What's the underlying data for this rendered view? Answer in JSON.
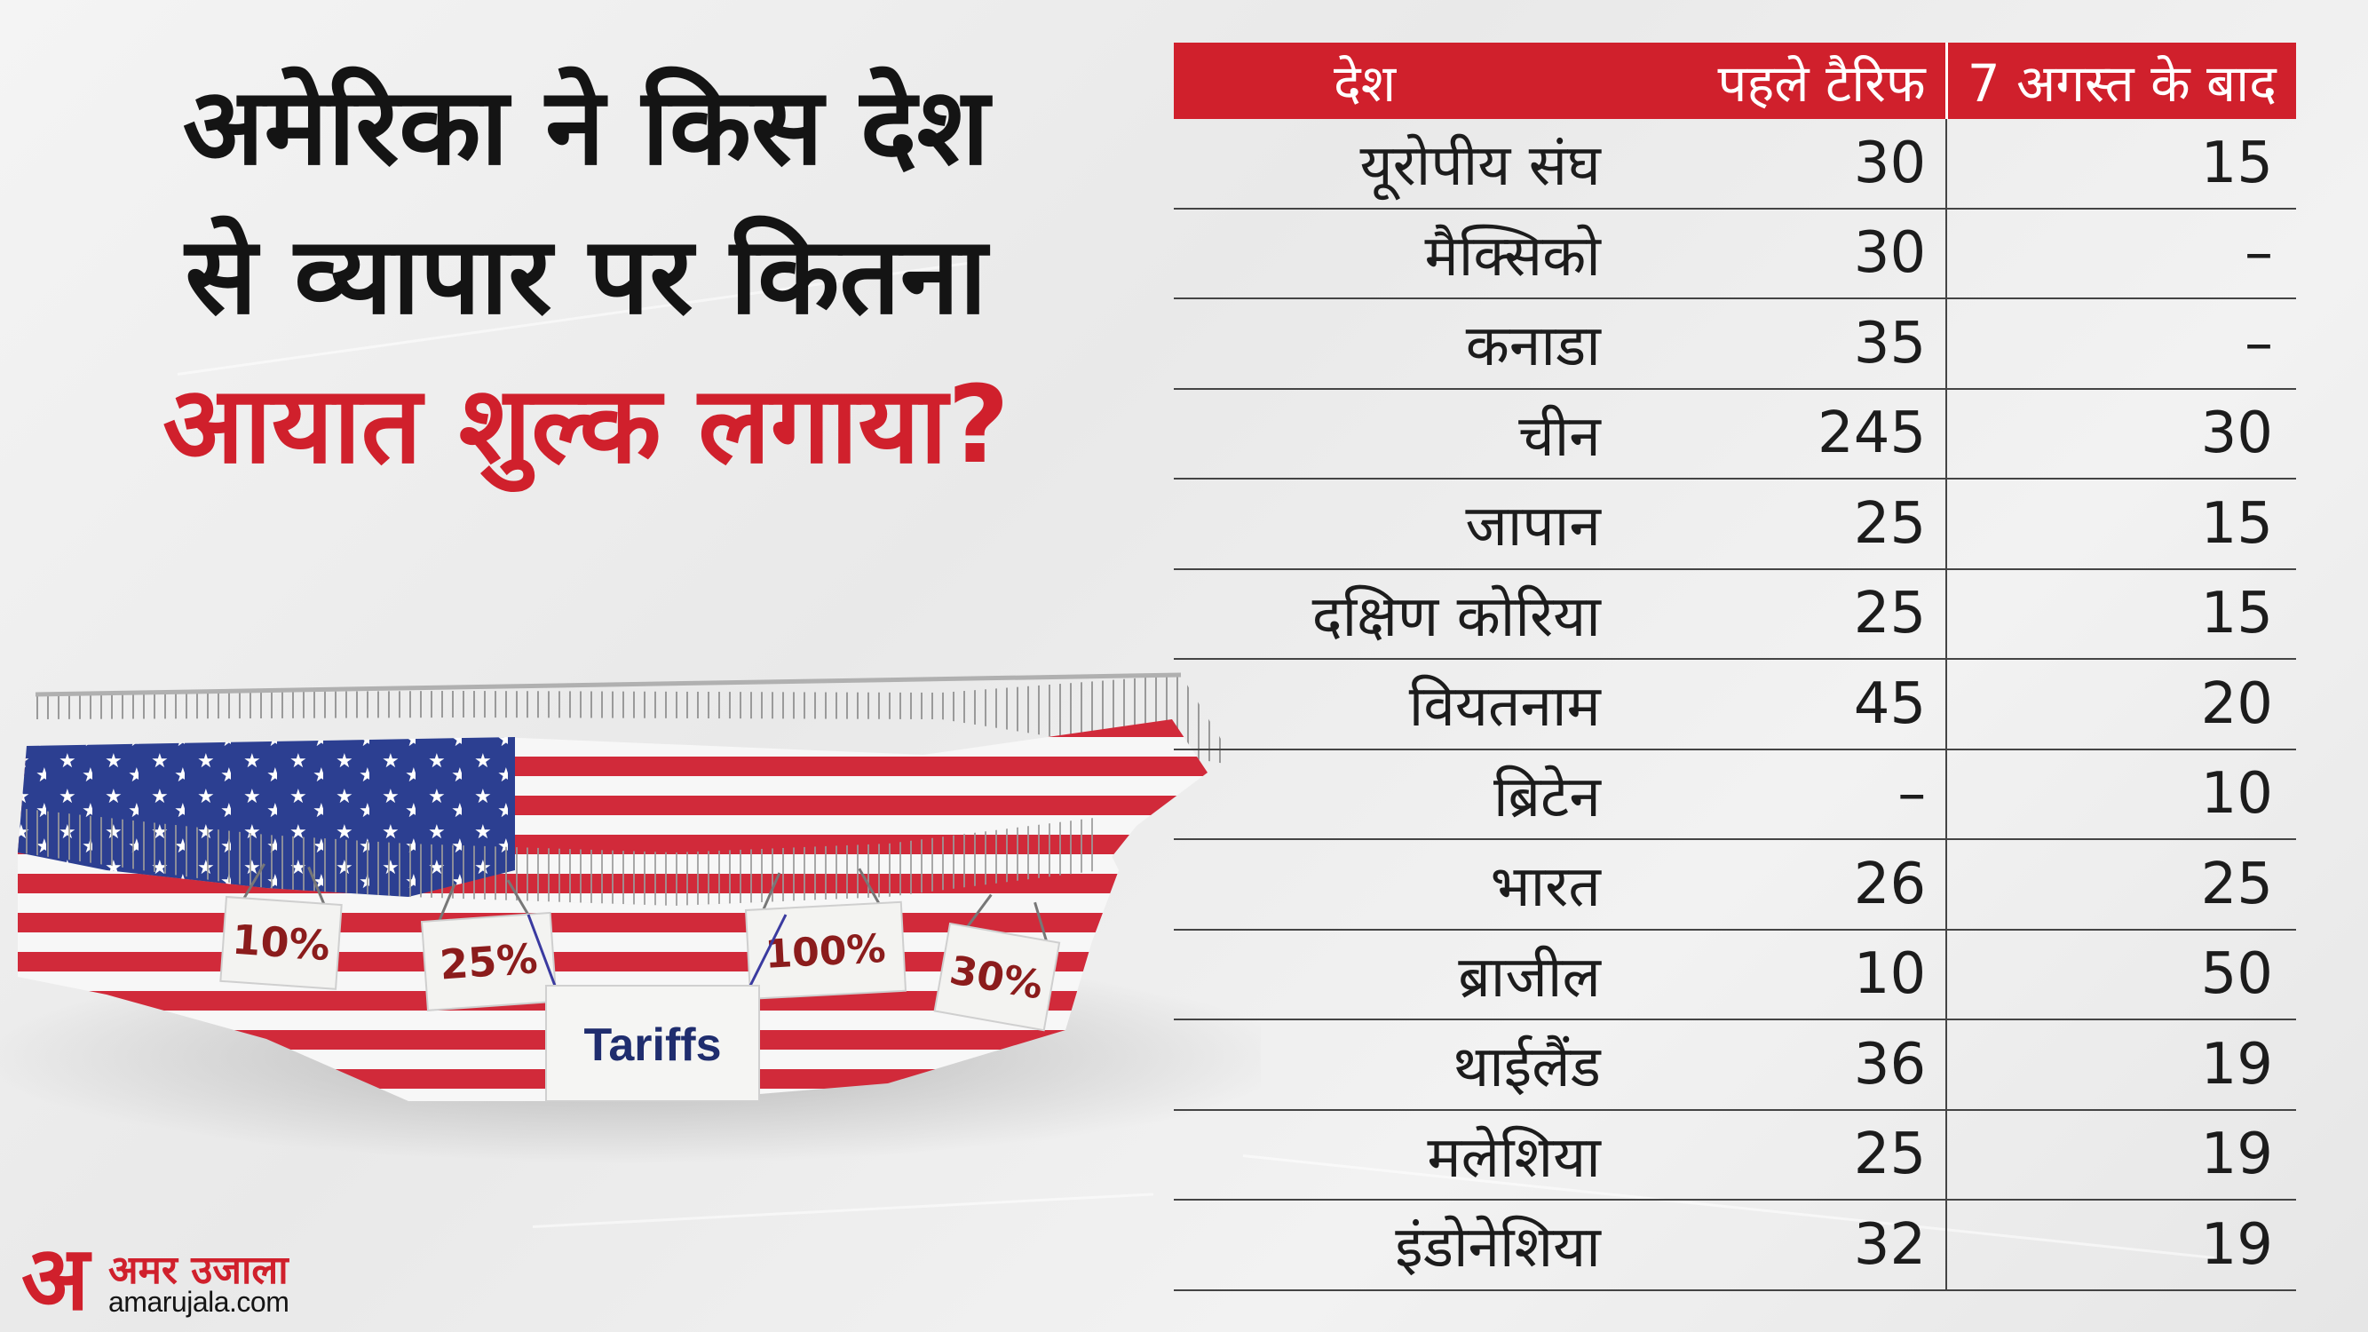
{
  "title": {
    "line1": "अमेरिका ने किस देश",
    "line2": "से व्यापार पर कितना",
    "line3": "आयात शुल्क लगाया?"
  },
  "illustration": {
    "signs": [
      "10%",
      "25%",
      "100%",
      "30%"
    ],
    "main_sign": "Tariffs"
  },
  "brand": {
    "mark": "अ",
    "name": "अमर उजाला",
    "url": "amarujala.com"
  },
  "colors": {
    "accent": "#d0202c",
    "text": "#141414"
  },
  "chart_data": {
    "type": "table",
    "columns": [
      "देश",
      "पहले टैरिफ",
      "7 अगस्त के बाद"
    ],
    "rows": [
      {
        "country": "यूरोपीय संघ",
        "before": "30",
        "after": "15"
      },
      {
        "country": "मैक्सिको",
        "before": "30",
        "after": "–"
      },
      {
        "country": "कनाडा",
        "before": "35",
        "after": "–"
      },
      {
        "country": "चीन",
        "before": "245",
        "after": "30"
      },
      {
        "country": "जापान",
        "before": "25",
        "after": "15"
      },
      {
        "country": "दक्षिण कोरिया",
        "before": "25",
        "after": "15"
      },
      {
        "country": "वियतनाम",
        "before": "45",
        "after": "20"
      },
      {
        "country": "ब्रिटेन",
        "before": "–",
        "after": "10"
      },
      {
        "country": "भारत",
        "before": "26",
        "after": "25"
      },
      {
        "country": "ब्राजील",
        "before": "10",
        "after": "50"
      },
      {
        "country": "थाईलैंड",
        "before": "36",
        "after": "19"
      },
      {
        "country": "मलेशिया",
        "before": "25",
        "after": "19"
      },
      {
        "country": "इंडोनेशिया",
        "before": "32",
        "after": "19"
      }
    ]
  }
}
